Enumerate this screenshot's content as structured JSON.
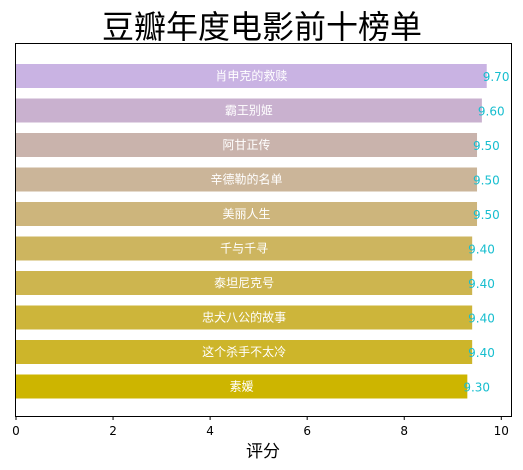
{
  "chart_data": {
    "type": "bar",
    "orientation": "horizontal",
    "title": "豆瓣年度电影前十榜单",
    "xlabel": "评分",
    "ylabel": "",
    "xlim": [
      0,
      10.2
    ],
    "x_ticks": [
      0,
      2,
      4,
      6,
      8,
      10
    ],
    "grid": false,
    "legend": "none",
    "categories": [
      "肖申克的救赎",
      "霸王别姬",
      "阿甘正传",
      "辛德勒的名单",
      "美丽人生",
      "千与千寻",
      "泰坦尼克号",
      "忠犬八公的故事",
      "这个杀手不太冷",
      "素媛"
    ],
    "values": [
      9.7,
      9.6,
      9.5,
      9.5,
      9.5,
      9.4,
      9.4,
      9.4,
      9.4,
      9.3
    ],
    "value_labels": [
      "9.70",
      "9.60",
      "9.50",
      "9.50",
      "9.50",
      "9.40",
      "9.40",
      "9.40",
      "9.40",
      "9.30"
    ],
    "colors": [
      "#c9b3e3",
      "#c9b1cf",
      "#c9b3ac",
      "#cbb599",
      "#cdb57c",
      "#cdb55f",
      "#cdb54f",
      "#cdb53a",
      "#cdb52a",
      "#cdb500"
    ],
    "value_label_color": "#17becf"
  }
}
